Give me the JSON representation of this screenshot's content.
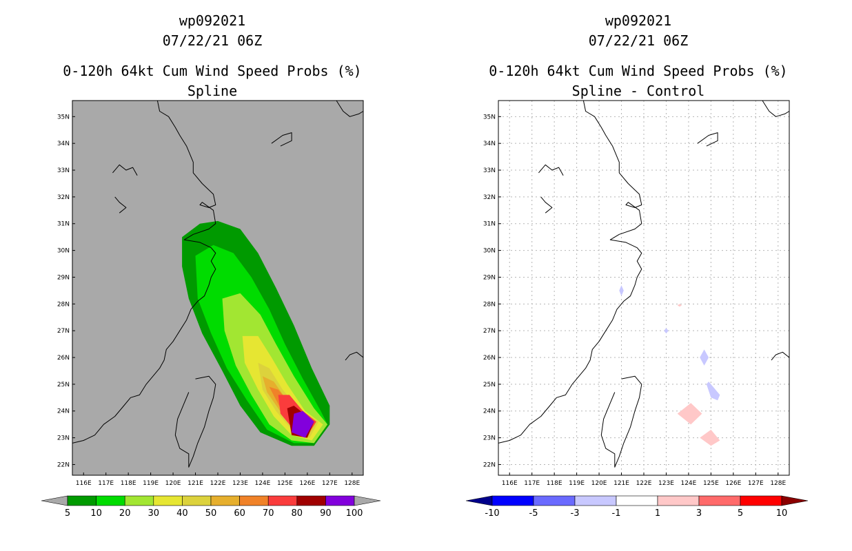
{
  "panels": [
    {
      "title_lines": [
        "wp092021",
        "07/22/21 06Z",
        "0-120h 64kt Cum Wind Speed Probs (%)",
        "Spline"
      ],
      "background": "#a9a9a9",
      "grid": false,
      "colorbar": {
        "labels": [
          "5",
          "10",
          "20",
          "30",
          "40",
          "50",
          "60",
          "70",
          "80",
          "90",
          "100"
        ],
        "colors": [
          "#a9a9a9",
          "#009a00",
          "#00dc00",
          "#a2e632",
          "#e6e632",
          "#dcd23c",
          "#e6af2d",
          "#f08228",
          "#fa3c3c",
          "#a00000",
          "#8200dc",
          "#a9a9a9"
        ]
      }
    },
    {
      "title_lines": [
        "wp092021",
        "07/22/21 06Z",
        "0-120h 64kt Cum Wind Speed Probs (%)",
        "Spline - Control"
      ],
      "background": "#ffffff",
      "grid": true,
      "colorbar": {
        "labels": [
          "-10",
          "-5",
          "-3",
          "-1",
          "1",
          "3",
          "5",
          "10"
        ],
        "colors": [
          "#00008b",
          "#0000ff",
          "#6a6aff",
          "#c8c8ff",
          "#ffffff",
          "#ffc8c8",
          "#ff6a6a",
          "#ff0000",
          "#8b0000"
        ]
      }
    }
  ],
  "axes": {
    "lat_labels": [
      "35N",
      "34N",
      "33N",
      "32N",
      "31N",
      "30N",
      "29N",
      "28N",
      "27N",
      "26N",
      "25N",
      "24N",
      "23N",
      "22N"
    ],
    "lon_labels": [
      "116E",
      "117E",
      "118E",
      "119E",
      "120E",
      "121E",
      "122E",
      "123E",
      "124E",
      "125E",
      "126E",
      "127E",
      "128E"
    ]
  },
  "map_extent": {
    "lon_min": 115.5,
    "lon_max": 128.5,
    "lat_min": 21.6,
    "lat_max": 35.6
  },
  "probability_contours": [
    {
      "level": 5,
      "color": "#009a00",
      "points": [
        [
          120.4,
          30.5
        ],
        [
          121.2,
          31.0
        ],
        [
          122.0,
          31.1
        ],
        [
          123.0,
          30.8
        ],
        [
          123.8,
          29.9
        ],
        [
          124.6,
          28.6
        ],
        [
          125.4,
          27.2
        ],
        [
          126.2,
          25.6
        ],
        [
          127.0,
          24.2
        ],
        [
          127.0,
          23.5
        ],
        [
          126.3,
          22.7
        ],
        [
          125.3,
          22.7
        ],
        [
          123.9,
          23.2
        ],
        [
          123.0,
          24.2
        ],
        [
          122.2,
          25.5
        ],
        [
          121.3,
          26.9
        ],
        [
          120.7,
          28.2
        ],
        [
          120.4,
          29.4
        ]
      ]
    },
    {
      "level": 10,
      "color": "#00dc00",
      "points": [
        [
          121.0,
          29.8
        ],
        [
          121.8,
          30.2
        ],
        [
          122.7,
          29.9
        ],
        [
          123.5,
          29.0
        ],
        [
          124.3,
          27.8
        ],
        [
          125.0,
          26.5
        ],
        [
          125.8,
          25.2
        ],
        [
          126.6,
          24.0
        ],
        [
          126.9,
          23.5
        ],
        [
          126.3,
          22.8
        ],
        [
          125.4,
          22.8
        ],
        [
          124.2,
          23.3
        ],
        [
          123.3,
          24.4
        ],
        [
          122.4,
          25.6
        ],
        [
          121.7,
          26.9
        ],
        [
          121.1,
          28.2
        ]
      ]
    },
    {
      "level": 20,
      "color": "#a2e632",
      "points": [
        [
          122.2,
          28.2
        ],
        [
          123.0,
          28.4
        ],
        [
          123.9,
          27.6
        ],
        [
          124.6,
          26.5
        ],
        [
          125.4,
          25.3
        ],
        [
          126.3,
          24.1
        ],
        [
          126.9,
          23.5
        ],
        [
          126.3,
          22.8
        ],
        [
          125.3,
          22.9
        ],
        [
          124.3,
          23.5
        ],
        [
          123.5,
          24.6
        ],
        [
          122.8,
          25.7
        ],
        [
          122.3,
          27.0
        ]
      ]
    },
    {
      "level": 30,
      "color": "#e6e632",
      "points": [
        [
          123.1,
          26.8
        ],
        [
          123.8,
          26.8
        ],
        [
          124.4,
          26.0
        ],
        [
          125.1,
          25.0
        ],
        [
          125.9,
          24.0
        ],
        [
          126.7,
          23.5
        ],
        [
          126.2,
          22.9
        ],
        [
          125.3,
          23.1
        ],
        [
          124.5,
          23.8
        ],
        [
          123.8,
          24.8
        ],
        [
          123.2,
          25.8
        ]
      ]
    },
    {
      "level": 40,
      "color": "#dcd23c",
      "points": [
        [
          123.8,
          25.8
        ],
        [
          124.3,
          25.6
        ],
        [
          124.9,
          24.8
        ],
        [
          125.6,
          24.1
        ],
        [
          126.5,
          23.6
        ],
        [
          126.1,
          23.0
        ],
        [
          125.3,
          23.3
        ],
        [
          124.6,
          24.0
        ],
        [
          124.0,
          24.8
        ]
      ]
    },
    {
      "level": 50,
      "color": "#e6af2d",
      "points": [
        [
          124.0,
          25.3
        ],
        [
          124.5,
          25.1
        ],
        [
          125.0,
          24.5
        ],
        [
          125.6,
          24.0
        ],
        [
          126.4,
          23.6
        ],
        [
          126.0,
          23.0
        ],
        [
          125.3,
          23.4
        ],
        [
          124.7,
          24.1
        ],
        [
          124.2,
          24.7
        ]
      ]
    },
    {
      "level": 60,
      "color": "#f08228",
      "points": [
        [
          124.3,
          24.9
        ],
        [
          124.7,
          24.8
        ],
        [
          125.2,
          24.3
        ],
        [
          125.8,
          24.0
        ],
        [
          126.4,
          23.6
        ],
        [
          126.0,
          23.1
        ],
        [
          125.3,
          23.5
        ],
        [
          124.8,
          24.1
        ]
      ]
    },
    {
      "level": 70,
      "color": "#fa3c3c",
      "points": [
        [
          124.7,
          24.6
        ],
        [
          125.2,
          24.6
        ],
        [
          125.8,
          24.0
        ],
        [
          126.4,
          23.6
        ],
        [
          126.0,
          23.1
        ],
        [
          125.3,
          23.4
        ],
        [
          124.8,
          23.9
        ]
      ]
    },
    {
      "level": 80,
      "color": "#a00000",
      "points": [
        [
          125.1,
          24.1
        ],
        [
          125.4,
          24.2
        ],
        [
          126.3,
          23.6
        ],
        [
          126.0,
          23.0
        ],
        [
          125.3,
          23.1
        ]
      ]
    },
    {
      "level": 90,
      "color": "#8200dc",
      "points": [
        [
          125.4,
          23.9
        ],
        [
          125.8,
          24.0
        ],
        [
          126.3,
          23.6
        ],
        [
          125.9,
          23.0
        ],
        [
          125.3,
          23.2
        ]
      ]
    }
  ],
  "difference_patches": [
    {
      "class": "-1 to -3",
      "color": "#c8c8ff",
      "points": [
        [
          121.0,
          28.7
        ],
        [
          121.1,
          28.5
        ],
        [
          121.0,
          28.3
        ],
        [
          120.9,
          28.5
        ]
      ]
    },
    {
      "class": "1 to 3",
      "color": "#ffc8c8",
      "points": [
        [
          123.6,
          28.0
        ],
        [
          123.7,
          27.95
        ],
        [
          123.6,
          27.9
        ],
        [
          123.5,
          27.95
        ]
      ]
    },
    {
      "class": "-1 to -3",
      "color": "#c8c8ff",
      "points": [
        [
          123.0,
          27.1
        ],
        [
          123.1,
          27.0
        ],
        [
          123.0,
          26.9
        ],
        [
          122.9,
          27.0
        ]
      ]
    },
    {
      "class": "-1 to -3",
      "color": "#c8c8ff",
      "points": [
        [
          124.7,
          26.3
        ],
        [
          124.9,
          26.0
        ],
        [
          124.7,
          25.7
        ],
        [
          124.5,
          26.0
        ]
      ]
    },
    {
      "class": "-1 to -3",
      "color": "#c8c8ff",
      "points": [
        [
          124.9,
          25.1
        ],
        [
          125.4,
          24.6
        ],
        [
          125.3,
          24.4
        ],
        [
          125.0,
          24.5
        ],
        [
          124.8,
          25.0
        ]
      ]
    },
    {
      "class": "1 to 3",
      "color": "#ffc8c8",
      "points": [
        [
          124.1,
          24.3
        ],
        [
          124.6,
          23.9
        ],
        [
          124.1,
          23.5
        ],
        [
          123.5,
          23.9
        ]
      ]
    },
    {
      "class": "1 to 3",
      "color": "#ffc8c8",
      "points": [
        [
          125.0,
          23.3
        ],
        [
          125.4,
          22.9
        ],
        [
          125.0,
          22.7
        ],
        [
          124.5,
          23.0
        ]
      ]
    }
  ],
  "coastlines": [
    [
      [
        119.3,
        35.6
      ],
      [
        119.4,
        35.2
      ],
      [
        119.8,
        35.0
      ],
      [
        120.1,
        34.6
      ],
      [
        120.3,
        34.3
      ],
      [
        120.6,
        33.9
      ],
      [
        120.9,
        33.3
      ],
      [
        120.9,
        32.9
      ],
      [
        121.3,
        32.5
      ],
      [
        121.8,
        32.1
      ],
      [
        121.9,
        31.7
      ],
      [
        121.6,
        31.6
      ],
      [
        121.2,
        31.7
      ],
      [
        121.3,
        31.8
      ],
      [
        121.8,
        31.5
      ],
      [
        121.9,
        31.0
      ],
      [
        121.6,
        30.8
      ],
      [
        120.9,
        30.6
      ],
      [
        120.5,
        30.4
      ],
      [
        121.2,
        30.3
      ],
      [
        121.7,
        30.1
      ],
      [
        121.9,
        29.9
      ],
      [
        121.7,
        29.6
      ],
      [
        121.9,
        29.3
      ],
      [
        121.7,
        29.0
      ],
      [
        121.6,
        28.7
      ],
      [
        121.4,
        28.3
      ],
      [
        121.1,
        28.1
      ],
      [
        120.8,
        27.8
      ],
      [
        120.6,
        27.4
      ],
      [
        120.3,
        27.0
      ],
      [
        120.0,
        26.6
      ],
      [
        119.7,
        26.3
      ],
      [
        119.6,
        25.9
      ],
      [
        119.4,
        25.6
      ],
      [
        119.1,
        25.3
      ],
      [
        118.8,
        25.0
      ],
      [
        118.5,
        24.6
      ],
      [
        118.1,
        24.5
      ],
      [
        117.8,
        24.2
      ],
      [
        117.4,
        23.8
      ],
      [
        116.9,
        23.5
      ],
      [
        116.5,
        23.1
      ],
      [
        116.0,
        22.9
      ],
      [
        115.5,
        22.8
      ]
    ],
    [
      [
        121.0,
        25.2
      ],
      [
        121.6,
        25.3
      ],
      [
        121.9,
        25.0
      ],
      [
        121.8,
        24.5
      ],
      [
        121.6,
        24.0
      ],
      [
        121.4,
        23.4
      ],
      [
        121.1,
        22.8
      ],
      [
        120.9,
        22.3
      ],
      [
        120.7,
        21.9
      ],
      [
        120.7,
        22.4
      ],
      [
        120.3,
        22.6
      ],
      [
        120.1,
        23.1
      ],
      [
        120.2,
        23.7
      ],
      [
        120.5,
        24.3
      ],
      [
        120.7,
        24.7
      ]
    ],
    [
      [
        124.4,
        34.0
      ],
      [
        124.9,
        34.3
      ],
      [
        125.3,
        34.4
      ],
      [
        125.3,
        34.1
      ],
      [
        124.8,
        33.9
      ]
    ],
    [
      [
        127.3,
        35.6
      ],
      [
        127.6,
        35.2
      ],
      [
        127.9,
        35.0
      ],
      [
        128.3,
        35.1
      ],
      [
        128.5,
        35.2
      ]
    ],
    [
      [
        128.5,
        26.0
      ],
      [
        128.2,
        26.2
      ],
      [
        127.9,
        26.1
      ],
      [
        127.7,
        25.9
      ]
    ],
    [
      [
        117.3,
        32.9
      ],
      [
        117.6,
        33.2
      ],
      [
        117.9,
        33.0
      ],
      [
        118.2,
        33.1
      ],
      [
        118.4,
        32.8
      ]
    ],
    [
      [
        117.4,
        32.0
      ],
      [
        117.6,
        31.8
      ],
      [
        117.9,
        31.6
      ],
      [
        117.6,
        31.4
      ]
    ]
  ]
}
